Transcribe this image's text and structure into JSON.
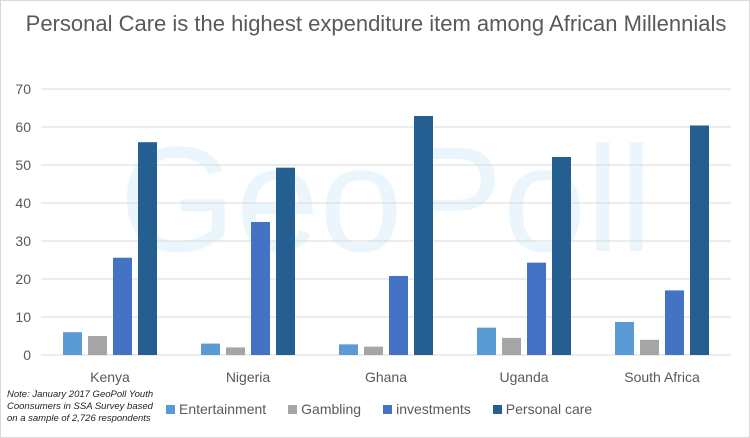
{
  "chart_data": {
    "type": "bar",
    "title": "Personal Care is the highest expenditure item among African Millennials",
    "categories": [
      "Kenya",
      "Nigeria",
      "Ghana",
      "Uganda",
      "South Africa"
    ],
    "series": [
      {
        "name": "Entertainment",
        "color": "#5b9bd5",
        "values": [
          6,
          3,
          2.8,
          7.2,
          8.7
        ]
      },
      {
        "name": "Gambling",
        "color": "#a5a5a5",
        "values": [
          5,
          2,
          2.2,
          4.5,
          4
        ]
      },
      {
        "name": "investments",
        "color": "#4472c4",
        "values": [
          25.6,
          35,
          20.8,
          24.3,
          17
        ]
      },
      {
        "name": "Personal care",
        "color": "#255e91",
        "values": [
          56,
          49.3,
          62.9,
          52.1,
          60.4
        ]
      }
    ],
    "ylim": [
      0,
      70
    ],
    "yticks": [
      0,
      10,
      20,
      30,
      40,
      50,
      60,
      70
    ],
    "grid": true,
    "legend_placement": "bottom",
    "note": "Note:  January 2017 GeoPoll Youth Coonsumers in SSA Survey based on a sample of 2,726 respondents",
    "watermark": "GeoPoll"
  }
}
